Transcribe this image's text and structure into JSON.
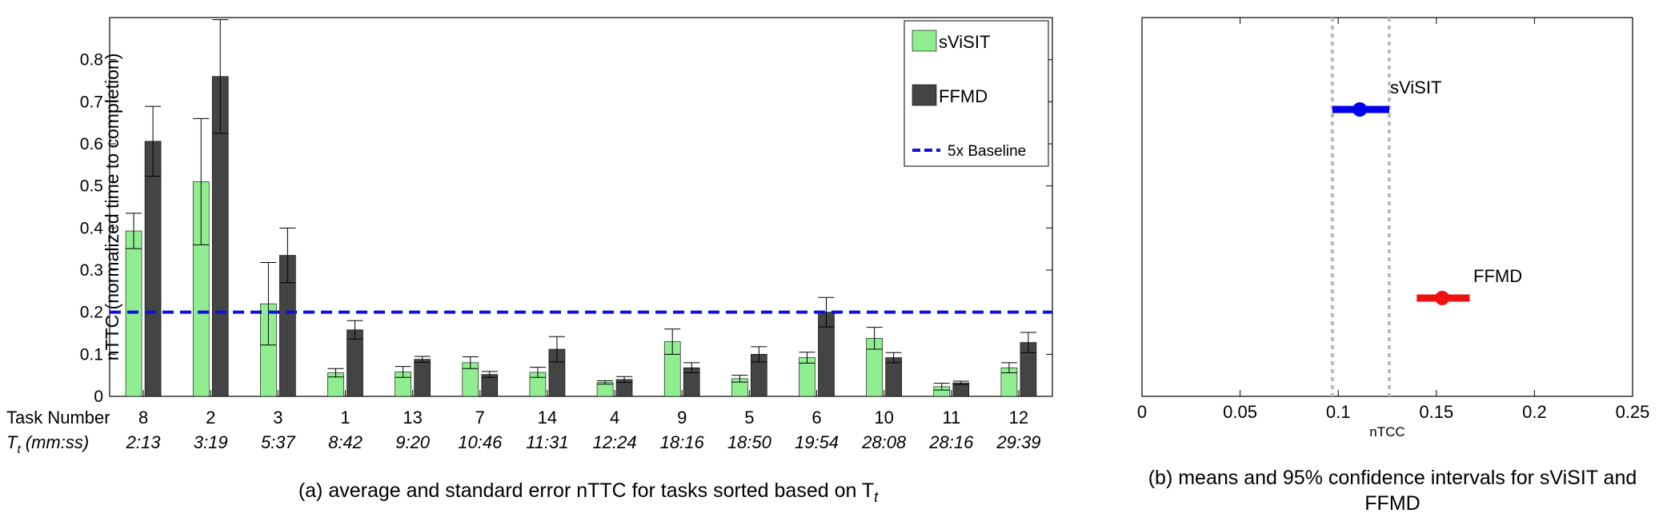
{
  "captions": {
    "a": "(a) average and standard error nTTC for tasks sorted based on T",
    "a_sub": "t",
    "b": "(b) means and 95% confidence intervals for sViSIT and FFMD"
  },
  "chart_data": [
    {
      "type": "bar",
      "ylabel": "nTTC (normalized time to completion)",
      "ylim": [
        0,
        0.9
      ],
      "yticks": [
        "0",
        "0.1",
        "0.2",
        "0.3",
        "0.4",
        "0.5",
        "0.6",
        "0.7",
        "0.8"
      ],
      "row_labels": {
        "task": "Task Number",
        "tt": "T",
        "tt_sub": "t",
        "tt_unit": " (mm:ss)"
      },
      "categories": [
        "8",
        "2",
        "3",
        "1",
        "13",
        "7",
        "14",
        "4",
        "9",
        "5",
        "6",
        "10",
        "11",
        "12"
      ],
      "times": [
        "2:13",
        "3:19",
        "5:37",
        "8:42",
        "9:20",
        "10:46",
        "11:31",
        "12:24",
        "18:16",
        "18:50",
        "19:54",
        "28:08",
        "28:16",
        "29:39"
      ],
      "series": [
        {
          "name": "sViSIT",
          "color": "#90ee90",
          "values": [
            0.393,
            0.51,
            0.22,
            0.056,
            0.058,
            0.08,
            0.057,
            0.033,
            0.13,
            0.042,
            0.092,
            0.138,
            0.023,
            0.068
          ],
          "errors": [
            0.042,
            0.15,
            0.098,
            0.01,
            0.013,
            0.014,
            0.012,
            0.004,
            0.03,
            0.008,
            0.013,
            0.026,
            0.008,
            0.012
          ]
        },
        {
          "name": "FFMD",
          "color": "#444444",
          "values": [
            0.606,
            0.76,
            0.335,
            0.158,
            0.088,
            0.052,
            0.112,
            0.04,
            0.068,
            0.1,
            0.2,
            0.092,
            0.032,
            0.128
          ],
          "errors": [
            0.083,
            0.135,
            0.065,
            0.022,
            0.007,
            0.007,
            0.03,
            0.007,
            0.012,
            0.018,
            0.035,
            0.012,
            0.004,
            0.024
          ]
        }
      ],
      "baseline": {
        "name": "5x Baseline",
        "value": 0.2,
        "color": "#1010dd"
      }
    },
    {
      "type": "scatter",
      "xlabel": "nTCC",
      "xlim": [
        0,
        0.25
      ],
      "xticks": [
        "0",
        "0.05",
        "0.1",
        "0.15",
        "0.2",
        "0.25"
      ],
      "vlines": [
        0.097,
        0.126
      ],
      "series": [
        {
          "name": "sViSIT",
          "mean": 0.111,
          "ci": [
            0.097,
            0.126
          ],
          "color": "#0000ee"
        },
        {
          "name": "FFMD",
          "mean": 0.153,
          "ci": [
            0.14,
            0.167
          ],
          "color": "#ee1111"
        }
      ]
    }
  ]
}
